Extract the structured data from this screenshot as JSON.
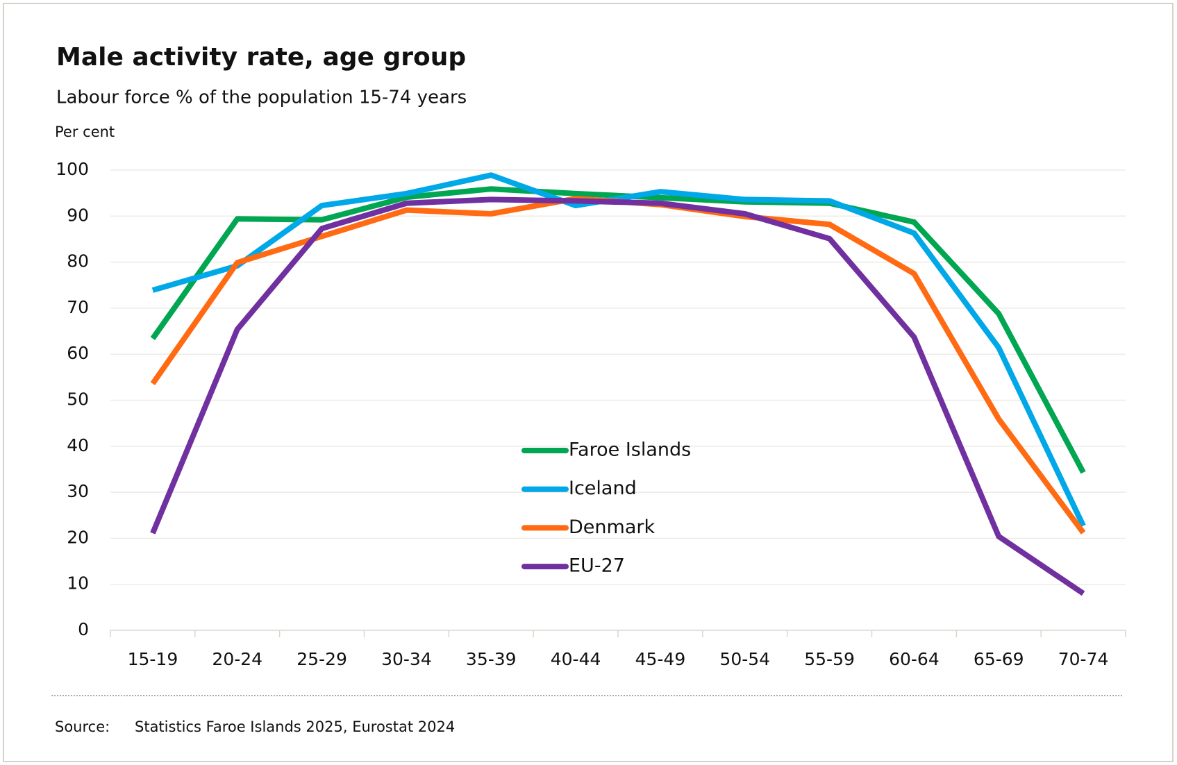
{
  "chart_data": {
    "type": "line",
    "title": "Male activity rate, age group",
    "subtitle": "Labour force % of the population 15-74 years",
    "y_label": "Per cent",
    "categories": [
      "15-19",
      "20-24",
      "25-29",
      "30-34",
      "35-39",
      "40-44",
      "45-49",
      "50-54",
      "55-59",
      "60-64",
      "65-69",
      "70-74"
    ],
    "series": [
      {
        "name": "Faroe Islands",
        "color": "#00a651",
        "values": [
          63.4,
          89.4,
          89.2,
          94.1,
          95.9,
          94.9,
          94.0,
          93.1,
          92.8,
          88.7,
          68.8,
          34.3
        ]
      },
      {
        "name": "Iceland",
        "color": "#00a8e8",
        "values": [
          73.9,
          79.2,
          92.3,
          94.9,
          98.9,
          92.3,
          95.3,
          93.6,
          93.3,
          86.3,
          61.4,
          22.7
        ]
      },
      {
        "name": "Denmark",
        "color": "#ff6a13",
        "values": [
          53.6,
          79.9,
          85.6,
          91.3,
          90.5,
          93.8,
          92.5,
          89.9,
          88.2,
          77.5,
          45.9,
          21.2
        ]
      },
      {
        "name": "EU-27",
        "color": "#7030a0",
        "values": [
          21.1,
          65.4,
          87.3,
          92.8,
          93.6,
          93.3,
          92.8,
          90.5,
          85.1,
          63.7,
          20.4,
          8.0
        ]
      }
    ],
    "ylim": [
      0,
      100
    ],
    "yticks": [
      0,
      10,
      20,
      30,
      40,
      50,
      60,
      70,
      80,
      90,
      100
    ],
    "grid": true,
    "source_label": "Source:",
    "source": "Statistics Faroe Islands 2025, Eurostat 2024"
  }
}
